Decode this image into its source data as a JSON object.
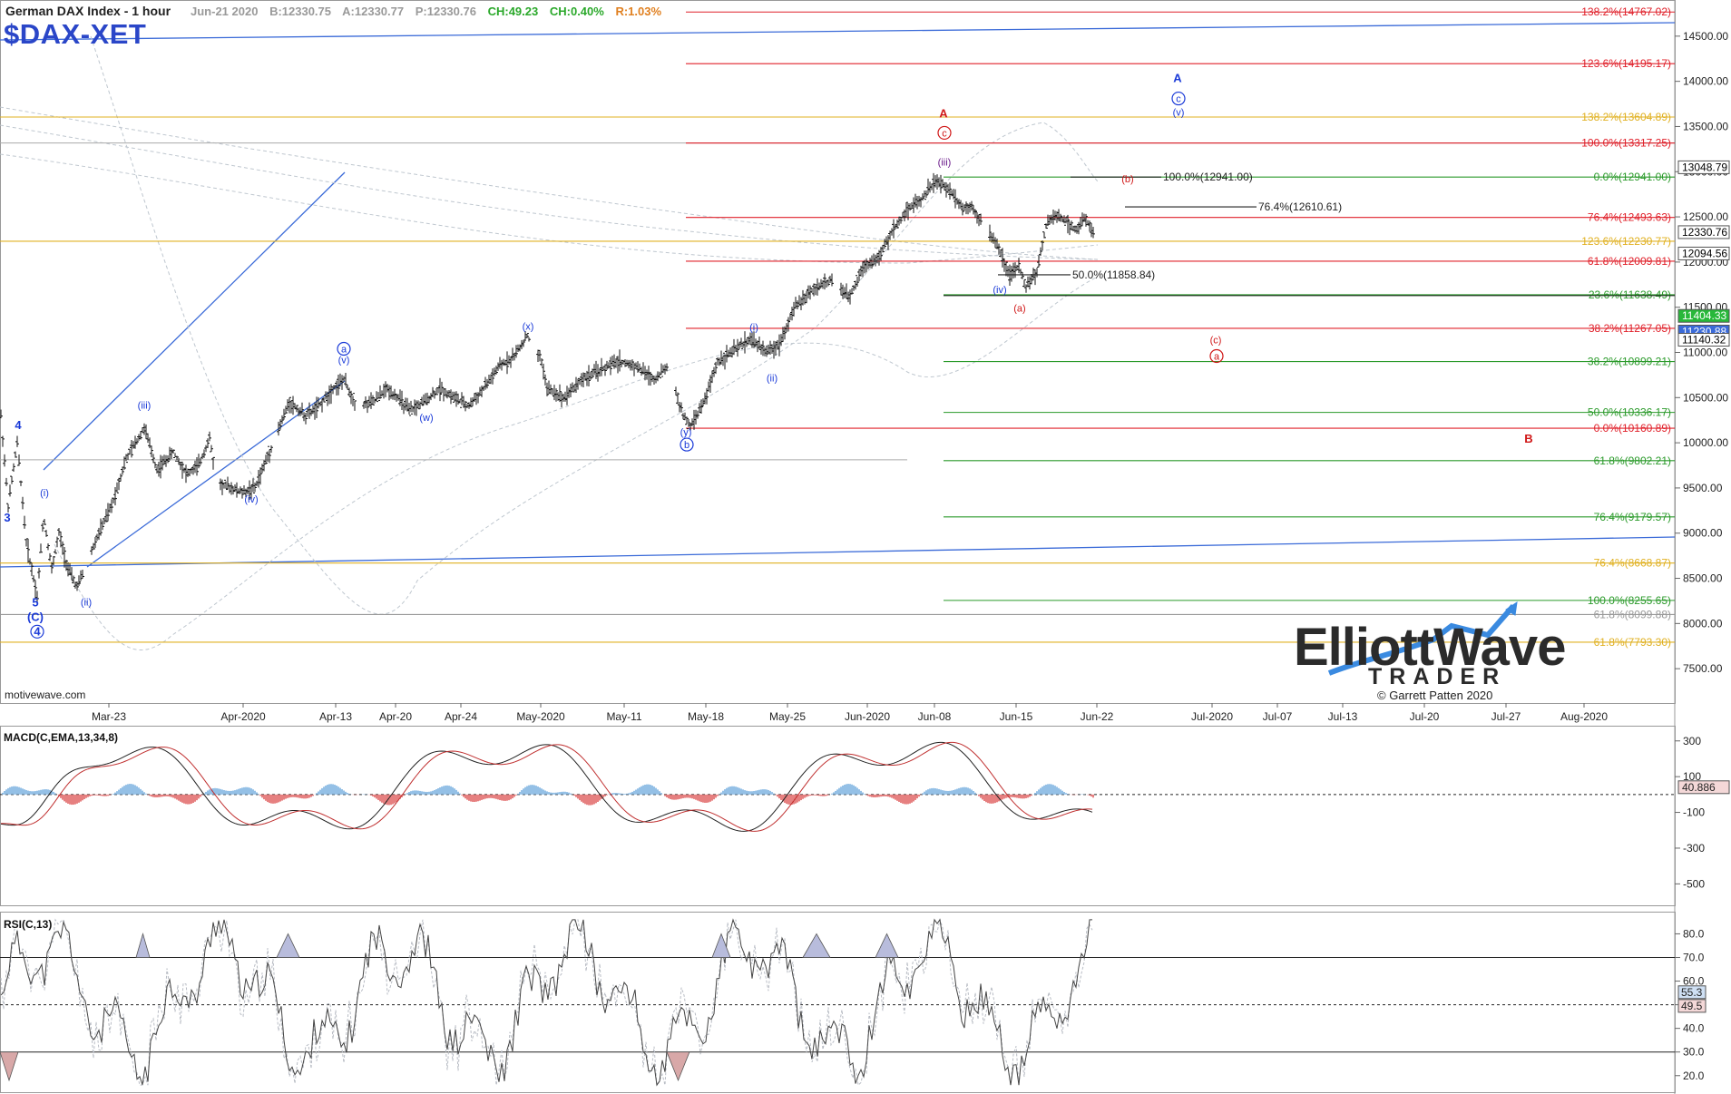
{
  "header": {
    "title": "German DAX Index - 1 hour",
    "date": "Jun-21 2020",
    "bid": "B:12330.75",
    "ask": "A:12330.77",
    "price": "P:12330.76",
    "change_pts": "CH:49.23",
    "change_pct": "CH:0.40%",
    "range": "R:1.03%",
    "symbol": "$DAX-XET"
  },
  "footer": {
    "site": "motivewave.com"
  },
  "logo": {
    "line1": "ElliottWave",
    "line2": "TRADER",
    "copyright": "© Garrett Patten 2020"
  },
  "panels": {
    "macd_label": "MACD(C,EMA,13,34,8)",
    "rsi_label": "RSI(C,13)"
  },
  "colors": {
    "fib_red": "#e0202a",
    "fib_green": "#2a9a2a",
    "fib_gold": "#e0b020",
    "trend_blue": "#3a6ad8",
    "wave_blue": "#1a3ad8",
    "wave_red": "#d01818",
    "price_bars": "#111111",
    "macd_pos": "#7ab0e0",
    "macd_neg": "#e06060",
    "rsi_fill": "#b8bcdc"
  },
  "chart_data": {
    "type": "line",
    "timeframe": "1 hour",
    "price_axis": {
      "range": [
        7120,
        14900
      ],
      "ticks": [
        7500,
        8000,
        8500,
        9000,
        9500,
        10000,
        10500,
        11000,
        11500,
        12000,
        12500,
        13000,
        13500,
        14000,
        14500
      ],
      "tick_labels": [
        "7500.00",
        "8000.00",
        "8500.00",
        "9000.00",
        "9500.00",
        "10000.00",
        "10500.00",
        "11000.00",
        "11500.00",
        "12000.00",
        "12500.00",
        "13000.00",
        "13500.00",
        "14000.00",
        "14500.00"
      ]
    },
    "price_tags": [
      {
        "label": "13048.79",
        "value": 13048.79,
        "style": "white"
      },
      {
        "label": "12330.76",
        "value": 12330.76,
        "style": "white"
      },
      {
        "label": "12094.56",
        "value": 12094.56,
        "style": "white"
      },
      {
        "label": "11404.33",
        "value": 11404.33,
        "style": "green"
      },
      {
        "label": "11230.88",
        "value": 11230.88,
        "style": "blue"
      },
      {
        "label": "11140.32",
        "value": 11140.32,
        "style": "white"
      }
    ],
    "x_axis": {
      "tick_labels": [
        "Mar-23",
        "Apr-2020",
        "Apr-13",
        "Apr-20",
        "Apr-24",
        "May-2020",
        "May-11",
        "May-18",
        "May-25",
        "Jun-2020",
        "Jun-08",
        "Jun-15",
        "Jun-22",
        "Jul-2020",
        "Jul-07",
        "Jul-13",
        "Jul-20",
        "Jul-27",
        "Aug-2020"
      ]
    },
    "price_keypoints": [
      {
        "x": 0,
        "v": 10300
      },
      {
        "x": 8,
        "v": 9300
      },
      {
        "x": 18,
        "v": 10000
      },
      {
        "x": 28,
        "v": 8900
      },
      {
        "x": 40,
        "v": 8300
      },
      {
        "x": 47,
        "v": 9200
      },
      {
        "x": 56,
        "v": 8600
      },
      {
        "x": 64,
        "v": 9000
      },
      {
        "x": 74,
        "v": 8600
      },
      {
        "x": 84,
        "v": 8400
      },
      {
        "x": 96,
        "v": 8700
      },
      {
        "x": 108,
        "v": 9000
      },
      {
        "x": 122,
        "v": 9300
      },
      {
        "x": 137,
        "v": 9800
      },
      {
        "x": 158,
        "v": 10170
      },
      {
        "x": 172,
        "v": 9700
      },
      {
        "x": 190,
        "v": 9900
      },
      {
        "x": 205,
        "v": 9650
      },
      {
        "x": 218,
        "v": 9750
      },
      {
        "x": 230,
        "v": 10050
      },
      {
        "x": 238,
        "v": 9550
      },
      {
        "x": 254,
        "v": 9500
      },
      {
        "x": 266,
        "v": 9450
      },
      {
        "x": 280,
        "v": 9500
      },
      {
        "x": 300,
        "v": 10000
      },
      {
        "x": 318,
        "v": 10450
      },
      {
        "x": 336,
        "v": 10300
      },
      {
        "x": 350,
        "v": 10400
      },
      {
        "x": 366,
        "v": 10600
      },
      {
        "x": 378,
        "v": 10700
      },
      {
        "x": 392,
        "v": 10400
      },
      {
        "x": 410,
        "v": 10450
      },
      {
        "x": 425,
        "v": 10600
      },
      {
        "x": 438,
        "v": 10500
      },
      {
        "x": 450,
        "v": 10350
      },
      {
        "x": 466,
        "v": 10450
      },
      {
        "x": 484,
        "v": 10600
      },
      {
        "x": 500,
        "v": 10500
      },
      {
        "x": 515,
        "v": 10400
      },
      {
        "x": 532,
        "v": 10600
      },
      {
        "x": 550,
        "v": 10850
      },
      {
        "x": 565,
        "v": 10950
      },
      {
        "x": 580,
        "v": 11180
      },
      {
        "x": 596,
        "v": 10900
      },
      {
        "x": 602,
        "v": 10600
      },
      {
        "x": 620,
        "v": 10500
      },
      {
        "x": 640,
        "v": 10700
      },
      {
        "x": 660,
        "v": 10800
      },
      {
        "x": 680,
        "v": 10900
      },
      {
        "x": 700,
        "v": 10850
      },
      {
        "x": 720,
        "v": 10700
      },
      {
        "x": 735,
        "v": 10850
      },
      {
        "x": 752,
        "v": 10300
      },
      {
        "x": 760,
        "v": 10180
      },
      {
        "x": 775,
        "v": 10450
      },
      {
        "x": 790,
        "v": 10900
      },
      {
        "x": 805,
        "v": 11000
      },
      {
        "x": 826,
        "v": 11150
      },
      {
        "x": 845,
        "v": 11000
      },
      {
        "x": 858,
        "v": 11100
      },
      {
        "x": 875,
        "v": 11500
      },
      {
        "x": 895,
        "v": 11700
      },
      {
        "x": 915,
        "v": 11800
      },
      {
        "x": 935,
        "v": 11600
      },
      {
        "x": 950,
        "v": 11950
      },
      {
        "x": 968,
        "v": 12050
      },
      {
        "x": 980,
        "v": 12300
      },
      {
        "x": 1000,
        "v": 12600
      },
      {
        "x": 1015,
        "v": 12700
      },
      {
        "x": 1030,
        "v": 12900
      },
      {
        "x": 1038,
        "v": 12850
      },
      {
        "x": 1048,
        "v": 12770
      },
      {
        "x": 1060,
        "v": 12600
      },
      {
        "x": 1070,
        "v": 12620
      },
      {
        "x": 1085,
        "v": 12380
      },
      {
        "x": 1100,
        "v": 12150
      },
      {
        "x": 1112,
        "v": 11850
      },
      {
        "x": 1122,
        "v": 11950
      },
      {
        "x": 1130,
        "v": 11720
      },
      {
        "x": 1142,
        "v": 11900
      },
      {
        "x": 1152,
        "v": 12400
      },
      {
        "x": 1162,
        "v": 12520
      },
      {
        "x": 1175,
        "v": 12450
      },
      {
        "x": 1185,
        "v": 12350
      },
      {
        "x": 1195,
        "v": 12480
      },
      {
        "x": 1205,
        "v": 12330
      }
    ],
    "fib_levels_red": [
      {
        "label": "138.2%(14767.02)",
        "value": 14767.02
      },
      {
        "label": "123.6%(14195.17)",
        "value": 14195.17
      },
      {
        "label": "100.0%(13317.25)",
        "value": 13317.25
      },
      {
        "label": "76.4%(12493.63)",
        "value": 12493.63
      },
      {
        "label": "61.8%(12009.81)",
        "value": 12009.81
      },
      {
        "label": "38.2%(11267.05)",
        "value": 11267.05
      },
      {
        "label": "0.0%(10160.89)",
        "value": 10160.89
      }
    ],
    "fib_levels_green": [
      {
        "label": "0.0%(12941.00)",
        "value": 12941.0
      },
      {
        "label": "23.6%(11638.49)",
        "value": 11638.49
      },
      {
        "label": "38.2%(10899.21)",
        "value": 10899.21
      },
      {
        "label": "50.0%(10336.17)",
        "value": 10336.17
      },
      {
        "label": "61.8%(9802.21)",
        "value": 9802.21
      },
      {
        "label": "76.4%(9179.57)",
        "value": 9179.57
      },
      {
        "label": "100.0%(8255.65)",
        "value": 8255.65
      }
    ],
    "fib_levels_gold": [
      {
        "label": "138.2%(13604.89)",
        "value": 13604.89
      },
      {
        "label": "123.6%(12230.77)",
        "value": 12230.77
      },
      {
        "label": "76.4%(8668.87)",
        "value": 8668.87
      },
      {
        "label": "61.8%(7793.30)",
        "value": 7793.3
      }
    ],
    "fib_levels_gray": [
      {
        "label": "61.8%(8099.88)",
        "value": 8099.88
      }
    ],
    "fib_levels_black": [
      {
        "label": "100.0%(12941.00)",
        "value": 12941.0
      },
      {
        "label": "76.4%(12610.61)",
        "value": 12610.61
      },
      {
        "label": "50.0%(11858.84)",
        "value": 11858.84
      }
    ],
    "wave_labels": [
      {
        "text": "4",
        "color": "blue",
        "x": 19,
        "v": 10150,
        "bold": true
      },
      {
        "text": "3",
        "color": "blue",
        "x": 7,
        "v": 9130,
        "bold": true
      },
      {
        "text": "5",
        "color": "blue",
        "x": 38,
        "v": 8190,
        "bold": true
      },
      {
        "text": "(C)",
        "color": "blue",
        "x": 38,
        "v": 8030,
        "bold": true
      },
      {
        "text": "4",
        "color": "blue",
        "x": 40,
        "v": 7870,
        "circle": true,
        "bold": true
      },
      {
        "text": "(i)",
        "color": "blue",
        "x": 48,
        "v": 9410
      },
      {
        "text": "(ii)",
        "color": "blue",
        "x": 94,
        "v": 8200
      },
      {
        "text": "(iii)",
        "color": "blue",
        "x": 158,
        "v": 10380
      },
      {
        "text": "(iv)",
        "color": "blue",
        "x": 276,
        "v": 9340
      },
      {
        "text": "a",
        "color": "blue",
        "x": 378,
        "v": 11000,
        "circle": true
      },
      {
        "text": "(v)",
        "color": "blue",
        "x": 378,
        "v": 10880
      },
      {
        "text": "(w)",
        "color": "blue",
        "x": 469,
        "v": 10240
      },
      {
        "text": "(x)",
        "color": "blue",
        "x": 581,
        "v": 11250
      },
      {
        "text": "(y)",
        "color": "blue",
        "x": 755,
        "v": 10080
      },
      {
        "text": "b",
        "color": "blue",
        "x": 756,
        "v": 9940,
        "circle": true
      },
      {
        "text": "(i)",
        "color": "blue",
        "x": 830,
        "v": 11240
      },
      {
        "text": "(ii)",
        "color": "blue",
        "x": 850,
        "v": 10680
      },
      {
        "text": "A",
        "color": "red",
        "x": 1039,
        "v": 13600,
        "bold": true
      },
      {
        "text": "c",
        "color": "red",
        "x": 1040,
        "v": 13390,
        "circle": true
      },
      {
        "text": "(iii)",
        "color": "purple",
        "x": 1040,
        "v": 13070
      },
      {
        "text": "(iv)",
        "color": "blue",
        "x": 1101,
        "v": 11660
      },
      {
        "text": "(a)",
        "color": "red",
        "x": 1123,
        "v": 11450
      },
      {
        "text": "(b)",
        "color": "red",
        "x": 1242,
        "v": 12880
      },
      {
        "text": "(c)",
        "color": "red",
        "x": 1339,
        "v": 11100
      },
      {
        "text": "a",
        "color": "red",
        "x": 1340,
        "v": 10920,
        "circle": true
      },
      {
        "text": "A",
        "color": "blue",
        "x": 1297,
        "v": 13990,
        "bold": true
      },
      {
        "text": "c",
        "color": "blue",
        "x": 1298,
        "v": 13770,
        "circle": true
      },
      {
        "text": "(v)",
        "color": "blue",
        "x": 1298,
        "v": 13620
      },
      {
        "text": "B",
        "color": "red",
        "x": 1684,
        "v": 10000,
        "bold": true
      }
    ],
    "macd": {
      "name": "MACD(C,EMA,13,34,8)",
      "axis_ticks": [
        300,
        100,
        -100,
        -300,
        -500
      ],
      "axis_tick_labels": [
        "300",
        "100",
        "-100",
        "-300",
        "-500"
      ],
      "current_value": 40.886,
      "current_label": "40.886"
    },
    "rsi": {
      "name": "RSI(C,13)",
      "axis_ticks": [
        80,
        70,
        60,
        50,
        40,
        30,
        20
      ],
      "axis_tick_labels": [
        "80.0",
        "70.0",
        "60.0",
        "50.0",
        "40.0",
        "30.0",
        "20.0"
      ],
      "current_tags": [
        "55.3",
        "49.5"
      ]
    }
  }
}
